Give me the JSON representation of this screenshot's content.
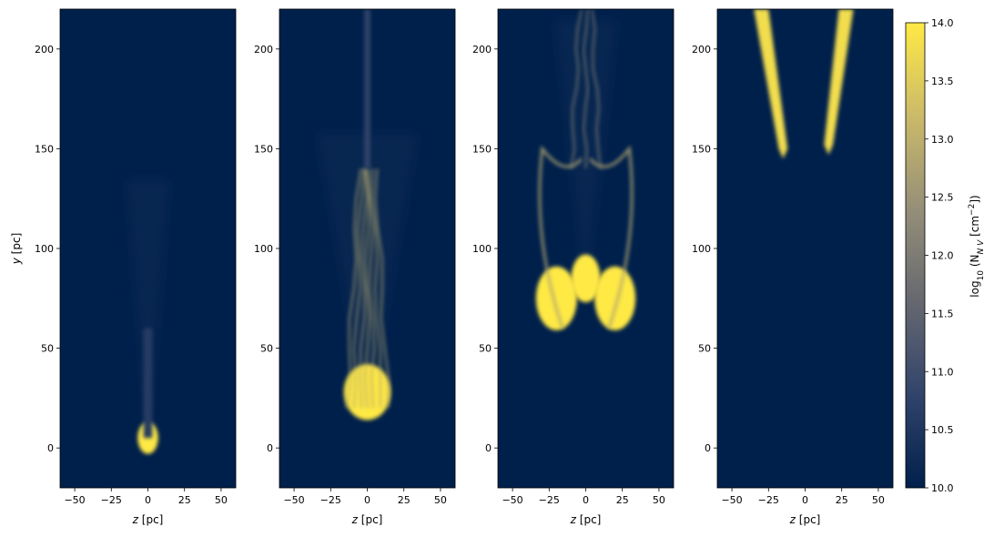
{
  "chart_data": [
    {
      "type": "heatmap",
      "panel": 1,
      "xlabel": "z [pc]",
      "ylabel": "y [pc]",
      "xlim": [
        -60,
        60
      ],
      "ylim": [
        -20,
        220
      ],
      "xticks": [
        -50,
        -25,
        0,
        25,
        50
      ],
      "yticks": [
        0,
        50,
        100,
        150,
        200
      ],
      "grid": false,
      "features": [
        {
          "kind": "blob",
          "z": 0,
          "y": 5,
          "rz": 7,
          "ry": 8,
          "level": 14.0
        },
        {
          "kind": "plume",
          "z": 0,
          "y0": 5,
          "y1": 60,
          "w": 6,
          "level": 10.6
        }
      ]
    },
    {
      "type": "heatmap",
      "panel": 2,
      "xlabel": "z [pc]",
      "ylabel": "",
      "xlim": [
        -60,
        60
      ],
      "ylim": [
        -20,
        220
      ],
      "xticks": [
        -50,
        -25,
        0,
        25,
        50
      ],
      "yticks": [
        0,
        50,
        100,
        150,
        200
      ],
      "grid": false,
      "features": [
        {
          "kind": "head",
          "z": 0,
          "y": 28,
          "rz": 16,
          "ry": 14,
          "level": 14.0
        },
        {
          "kind": "filaments",
          "y0": 20,
          "y1": 140,
          "zs": [
            -14,
            -9,
            -4,
            0,
            4,
            9,
            14
          ],
          "level": 12.8
        },
        {
          "kind": "wake",
          "z": 0,
          "y0": 140,
          "y1": 220,
          "w": 4,
          "level": 10.8
        }
      ]
    },
    {
      "type": "heatmap",
      "panel": 3,
      "xlabel": "z [pc]",
      "ylabel": "",
      "xlim": [
        -60,
        60
      ],
      "ylim": [
        -20,
        220
      ],
      "xticks": [
        -50,
        -25,
        0,
        25,
        50
      ],
      "yticks": [
        0,
        50,
        100,
        150,
        200
      ],
      "grid": false,
      "features": [
        {
          "kind": "lobes",
          "zs": [
            -20,
            20
          ],
          "y": 75,
          "rz": 14,
          "ry": 16,
          "level": 14.0
        },
        {
          "kind": "core",
          "z": 0,
          "y": 85,
          "rz": 10,
          "ry": 12,
          "level": 14.0
        },
        {
          "kind": "shells",
          "zl": -35,
          "zr": 35,
          "y0": 60,
          "y1": 150,
          "level": 12.8
        },
        {
          "kind": "filaments",
          "y0": 140,
          "y1": 220,
          "zs": [
            -10,
            0,
            10
          ],
          "level": 12.2
        }
      ]
    },
    {
      "type": "heatmap",
      "panel": 4,
      "xlabel": "z [pc]",
      "ylabel": "",
      "xlim": [
        -60,
        60
      ],
      "ylim": [
        -20,
        220
      ],
      "xticks": [
        -50,
        -25,
        0,
        25,
        50
      ],
      "yticks": [
        0,
        50,
        100,
        150,
        200
      ],
      "grid": false,
      "features": [
        {
          "kind": "streak",
          "z0": -15,
          "z1": -30,
          "y0": 145,
          "y1": 220,
          "level": 13.8
        },
        {
          "kind": "streak",
          "z0": 16,
          "z1": 28,
          "y0": 147,
          "y1": 220,
          "level": 13.8
        }
      ]
    }
  ],
  "colorbar": {
    "label": "log10 (N_NV [cm^-2])",
    "label_prefix": "log",
    "label_sub": "10",
    "label_main": " (N",
    "label_species": "N V",
    "label_units": " [cm",
    "label_exp": "−2",
    "label_close": "])",
    "min": 10.0,
    "max": 14.0,
    "ticks": [
      "10.0",
      "10.5",
      "11.0",
      "11.5",
      "12.0",
      "12.5",
      "13.0",
      "13.5",
      "14.0"
    ],
    "colormap": "cividis",
    "colors": [
      "#00204c",
      "#31446b",
      "#666870",
      "#958f78",
      "#cbba69",
      "#ffe945"
    ]
  },
  "labels": {
    "xlabel_z": "z",
    "xlabel_unit": " [pc]",
    "ylabel_y": "y",
    "ylabel_unit": " [pc]"
  }
}
